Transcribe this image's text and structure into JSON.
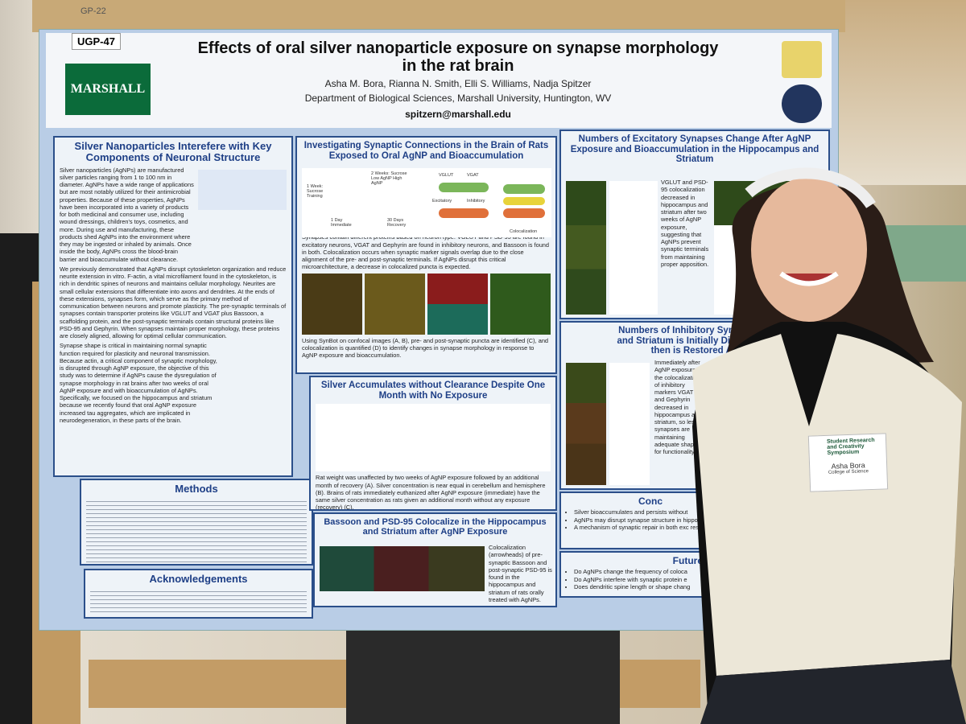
{
  "board_tag": "GP-22",
  "poster": {
    "id": "UGP-47",
    "logo": "MARSHALL",
    "title": "Effects of oral silver nanoparticle exposure on synapse morphology in the rat brain",
    "authors": "Asha M. Bora, Rianna N. Smith, Elli S. Williams, Nadja Spitzer",
    "affiliation": "Department of Biological Sciences, Marshall University, Huntington, WV",
    "email": "spitzern@marshall.edu",
    "intro": {
      "heading": "Silver Nanoparticles Interefere with Key Components of Neuronal Structure",
      "paragraphs": [
        "Silver nanoparticles (AgNPs) are manufactured silver particles ranging from 1 to 100 nm in diameter. AgNPs have a wide range of applications but are most notably utilized for their antimicrobial properties. Because of these properties, AgNPs have been incorporated into a variety of products for both medicinal and consumer use, including wound dressings, children's toys, cosmetics, and more. During use and manufacturing, these products shed AgNPs into the environment where they may be ingested or inhaled by animals. Once inside the body, AgNPs cross the blood-brain barrier and bioaccumulate without clearance.",
        "We previously demonstrated that AgNPs disrupt cytoskeleton organization and reduce neurite extension in vitro. F-actin, a vital microfilament found in the cytoskeleton, is rich in dendritic spines of neurons and maintains cellular morphology. Neurites are small cellular extensions that differentiate into axons and dendrites. At the ends of these extensions, synapses form, which serve as the primary method of communication between neurons and promote plasticity. The pre-synaptic terminals of synapses contain transporter proteins like VGLUT and VGAT plus Bassoon, a scaffolding protein, and the post-synaptic terminals contain structural proteins like PSD-95 and Gephyrin. When synapses maintain proper morphology, these proteins are closely aligned, allowing for optimal cellular communication.",
        "Synapse shape is critical in maintaining normal synaptic function required for plasticity and neuronal transmission. Because actin, a critical component of synaptic morphology, is disrupted through AgNP exposure, the objective of this study was to determine if AgNPs cause the dysregulation of synapse morphology in rat brains after two weeks of oral AgNP exposure and with bioaccumulation of AgNPs. Specifically, we focused on the hippocampus and striatum because we recently found that oral AgNP exposure increased tau aggregates, which are implicated in neurodegeneration, in these parts of the brain."
      ]
    },
    "methods": {
      "heading": "Methods"
    },
    "acknowledgements": {
      "heading": "Acknowledgements"
    },
    "connections": {
      "heading": "Investigating Synaptic Connections in the Brain of Rats Exposed to Oral AgNP and Bioaccumulation",
      "diagram_labels": [
        "1 Week: Sucrose Training",
        "2 Weeks: Sucrose Low AgNP High AgNP",
        "1 Day Immediate",
        "30 Days Recovery",
        "VGLUT",
        "VGAT",
        "Excitatory",
        "Inhibitory",
        "Colocalization"
      ],
      "body": "Synapses contain different proteins based on neuron type. VGLUT and PSD-95 are found in excitatory neurons, VGAT and Gephyrin are found in inhibitory neurons, and Bassoon is found in both. Colocalization occurs when synaptic marker signals overlap due to the close alignment of the pre- and post-synaptic terminals. If AgNPs disrupt this critical microarchitecture, a decrease in colocalized puncta is expected.",
      "caption": "Using SynBot on confocal images (A, B), pre- and post-synaptic puncta are identified (C), and colocalization is quantified (D) to identify changes in synapse morphology in response to AgNP exposure and bioaccumulation."
    },
    "accumulation": {
      "heading": "Silver Accumulates without Clearance Despite One Month with No Exposure",
      "body": "Rat weight was unaffected by two weeks of AgNP exposure followed by an additional month of recovery (A). Silver concentration is near equal in cerebellum and hemisphere (B). Brains of rats immediately euthanized after AgNP exposure (immediate) have the same silver concentration as rats given an additional month without any exposure (recovery) (C)."
    },
    "colocalize": {
      "heading": "Bassoon and PSD-95 Colocalize in the Hippocampus and Striatum after AgNP Exposure",
      "body": "Colocalization (arrowheads) of pre-synaptic Bassoon and post-synaptic PSD-95 is found in the hippocampus and striatum of rats orally treated with AgNPs."
    },
    "excitatory": {
      "heading": "Numbers of Excitatory Synapses Change After AgNP Exposure and Bioaccumulation in the Hippocampus and Striatum",
      "body": "VGLUT and PSD-95 colocalization decreased in hippocampus and striatum after two weeks of AgNP exposure, suggesting that AgNPs prevent synaptic terminals from maintaining proper apposition."
    },
    "inhibitory": {
      "heading_lines": [
        "Numbers of Inhibitory Synapses in",
        "and Striatum is Initially Disrupted b",
        "then is Restored Aft"
      ],
      "body": "Immediately after AgNP exposure, the colocalization of inhibitory markers VGAT and Gephyrin decreased in hippocampus and striatum, so less synapses are maintaining adequate shape for functionality."
    },
    "conclusions": {
      "heading": "Conc",
      "bullets": [
        "Silver bioaccumulates and persists without",
        "AgNPs may disrupt synapse structure in hippocampus and striatum.",
        "A mechanism of synaptic repair in both exc restoration of synapse morphology when"
      ]
    },
    "future": {
      "heading": "Future",
      "bullets": [
        "Do AgNPs change the frequency of coloca",
        "Do AgNPs interfere with synaptic protein e",
        "Does dendritic spine length or shape chang"
      ]
    }
  },
  "badge": {
    "event": "Student Research and Creativity Symposium",
    "name": "Asha Bora",
    "role": "College of Science"
  }
}
